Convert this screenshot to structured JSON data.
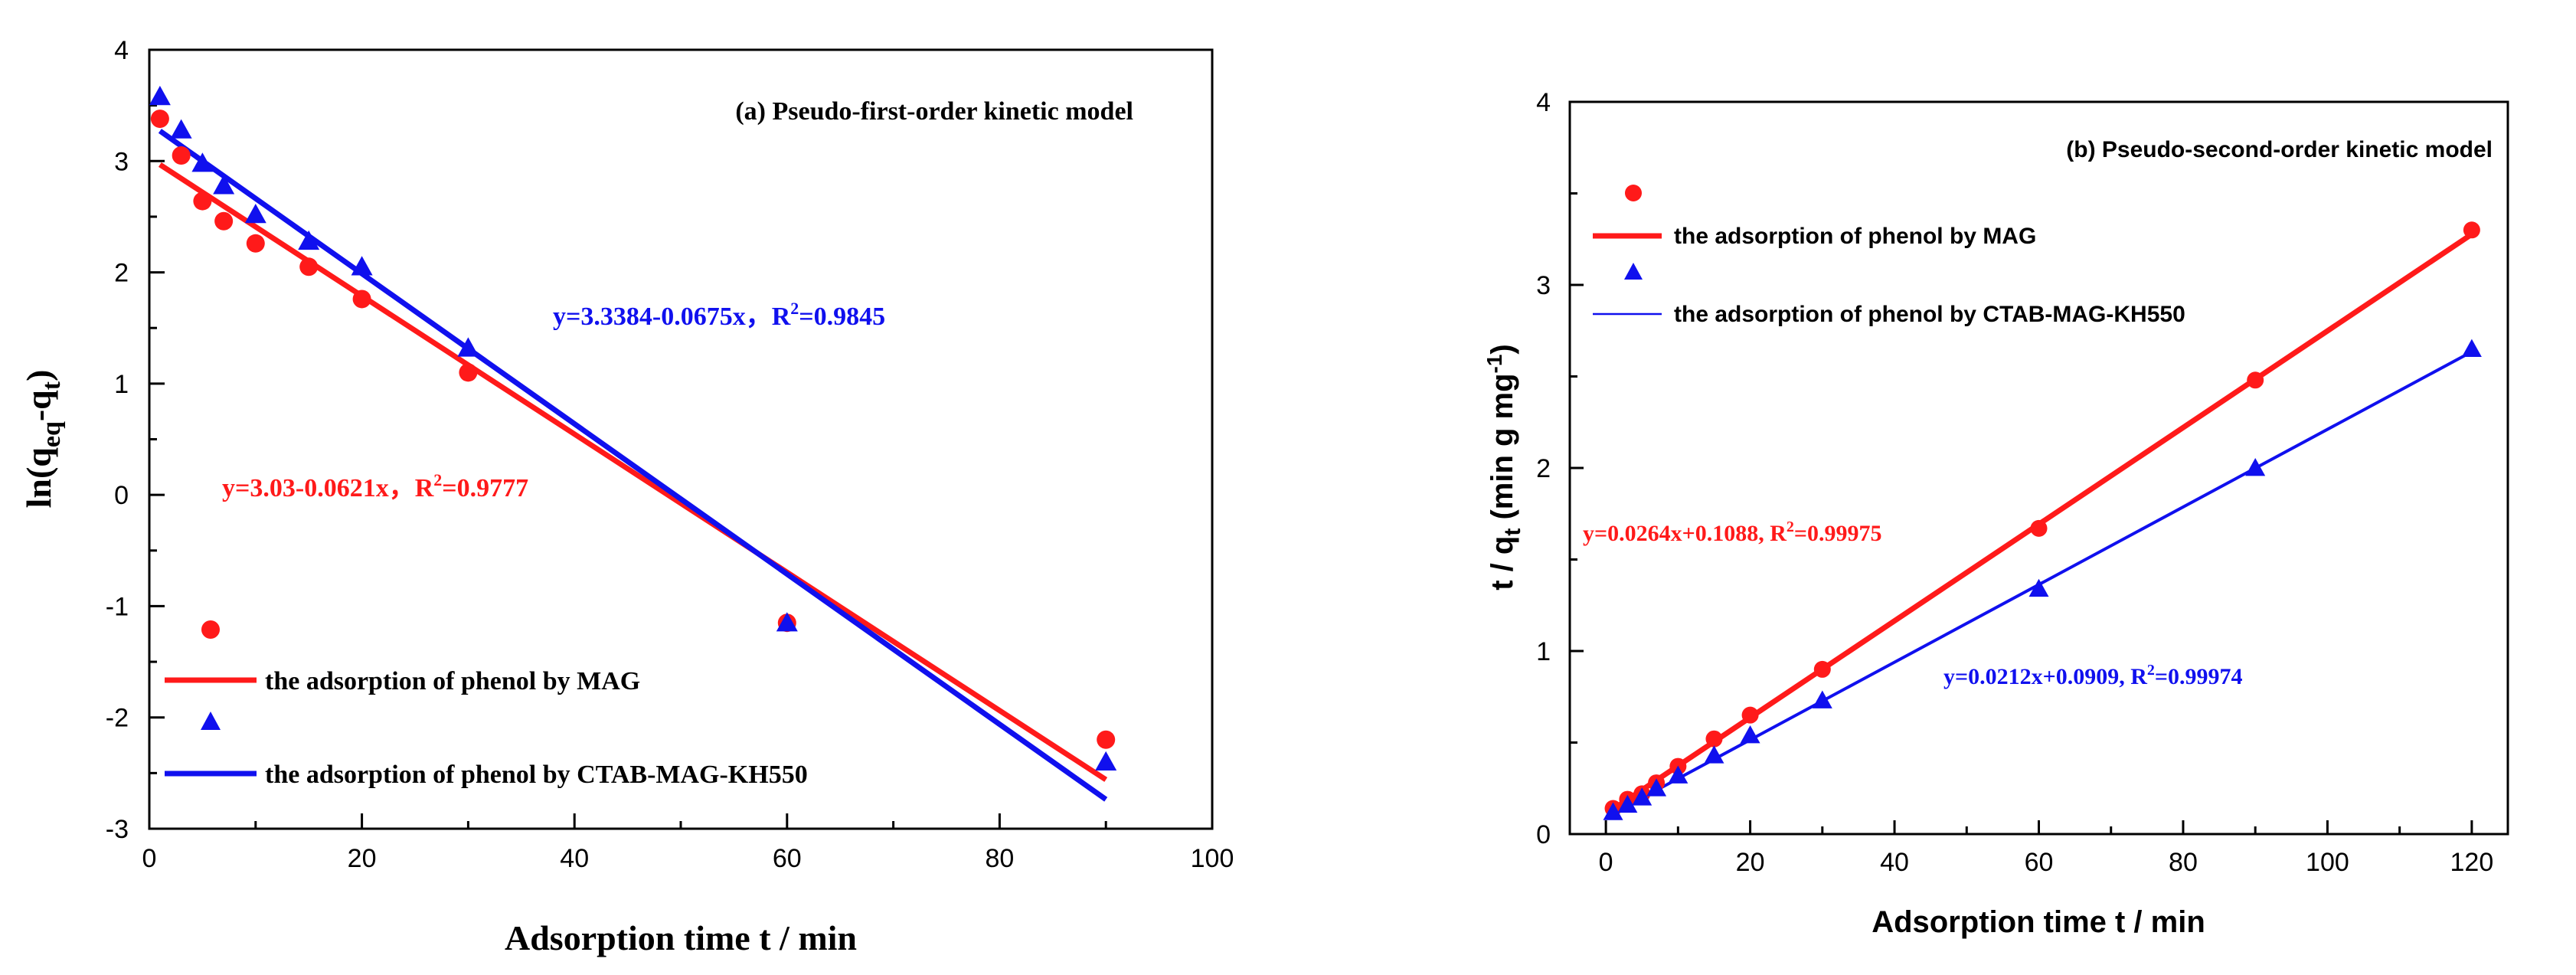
{
  "colors": {
    "mag": "#ff1a1a",
    "ctab": "#1010ee",
    "axis": "#000000"
  },
  "chart_data": [
    {
      "id": "a",
      "type": "scatter",
      "title": "(a) Pseudo-first-order kinetic model",
      "xlabel": "Adsorption time t / min",
      "ylabel_parts": [
        "ln(q",
        "eq",
        "-q",
        "t",
        ")"
      ],
      "xlim": [
        0,
        100
      ],
      "ylim": [
        -3,
        4
      ],
      "x_ticks": [
        0,
        20,
        40,
        60,
        80,
        100
      ],
      "y_ticks": [
        -3,
        -2,
        -1,
        0,
        1,
        2,
        3,
        4
      ],
      "x_tick_labels": [
        "0",
        "20",
        "40",
        "60",
        "80",
        "100"
      ],
      "y_tick_labels": [
        "-3",
        "-2",
        "-1",
        "0",
        "1",
        "2",
        "3",
        "4"
      ],
      "series": [
        {
          "name": "the adsorption of phenol by MAG",
          "marker": "circle",
          "color_key": "mag",
          "x": [
            1,
            3,
            5,
            7,
            10,
            15,
            20,
            30,
            60,
            90
          ],
          "y": [
            3.38,
            3.05,
            2.64,
            2.46,
            2.26,
            2.05,
            1.76,
            1.1,
            -1.15,
            -2.2
          ],
          "fit": {
            "intercept": 3.03,
            "slope": -0.0621,
            "x_range": [
              1,
              90
            ]
          },
          "equation": {
            "main": "y=3.03-0.0621x，R",
            "sup": "2",
            "tail": "=0.9777"
          }
        },
        {
          "name": "the adsorption of phenol by CTAB-MAG-KH550",
          "marker": "triangle",
          "color_key": "ctab",
          "x": [
            1,
            3,
            5,
            7,
            10,
            15,
            20,
            30,
            60,
            90
          ],
          "y": [
            3.58,
            3.28,
            2.98,
            2.78,
            2.52,
            2.28,
            2.05,
            1.32,
            -1.15,
            -2.4
          ],
          "fit": {
            "intercept": 3.3384,
            "slope": -0.0675,
            "x_range": [
              1,
              90
            ]
          },
          "equation": {
            "main": "y=3.3384-0.0675x，R",
            "sup": "2",
            "tail": "=0.9845"
          }
        }
      ]
    },
    {
      "id": "b",
      "type": "scatter",
      "title": "(b) Pseudo-second-order kinetic model",
      "xlabel": "Adsorption time t / min",
      "ylabel_parts": [
        "t / q",
        "t",
        " (min g mg",
        "-1",
        ")"
      ],
      "xlim": [
        -5,
        125
      ],
      "ylim": [
        0,
        4
      ],
      "x_ticks": [
        0,
        20,
        40,
        60,
        80,
        100,
        120
      ],
      "y_ticks": [
        0,
        1,
        2,
        3,
        4
      ],
      "x_tick_labels": [
        "0",
        "20",
        "40",
        "60",
        "80",
        "100",
        "120"
      ],
      "y_tick_labels": [
        "0",
        "1",
        "2",
        "3",
        "4"
      ],
      "series": [
        {
          "name": "the adsorption of phenol by MAG",
          "marker": "circle",
          "color_key": "mag",
          "x": [
            1,
            3,
            5,
            7,
            10,
            15,
            20,
            30,
            60,
            90,
            120
          ],
          "y": [
            0.14,
            0.19,
            0.22,
            0.28,
            0.37,
            0.52,
            0.65,
            0.9,
            1.67,
            2.48,
            3.3
          ],
          "fit": {
            "intercept": 0.1088,
            "slope": 0.0264,
            "x_range": [
              1,
              120
            ]
          },
          "equation": {
            "main": "y=0.0264x+0.1088, R",
            "sup": "2",
            "tail": "=0.99975"
          }
        },
        {
          "name": "the adsorption of phenol by CTAB-MAG-KH550",
          "marker": "triangle",
          "color_key": "ctab",
          "x": [
            1,
            3,
            5,
            7,
            10,
            15,
            20,
            30,
            60,
            90,
            120
          ],
          "y": [
            0.12,
            0.16,
            0.2,
            0.25,
            0.32,
            0.43,
            0.54,
            0.73,
            1.34,
            2.0,
            2.65
          ],
          "fit": {
            "intercept": 0.0909,
            "slope": 0.0212,
            "x_range": [
              1,
              120
            ]
          },
          "equation": {
            "main": "y=0.0212x+0.0909, R",
            "sup": "2",
            "tail": "=0.99974"
          }
        }
      ]
    }
  ]
}
